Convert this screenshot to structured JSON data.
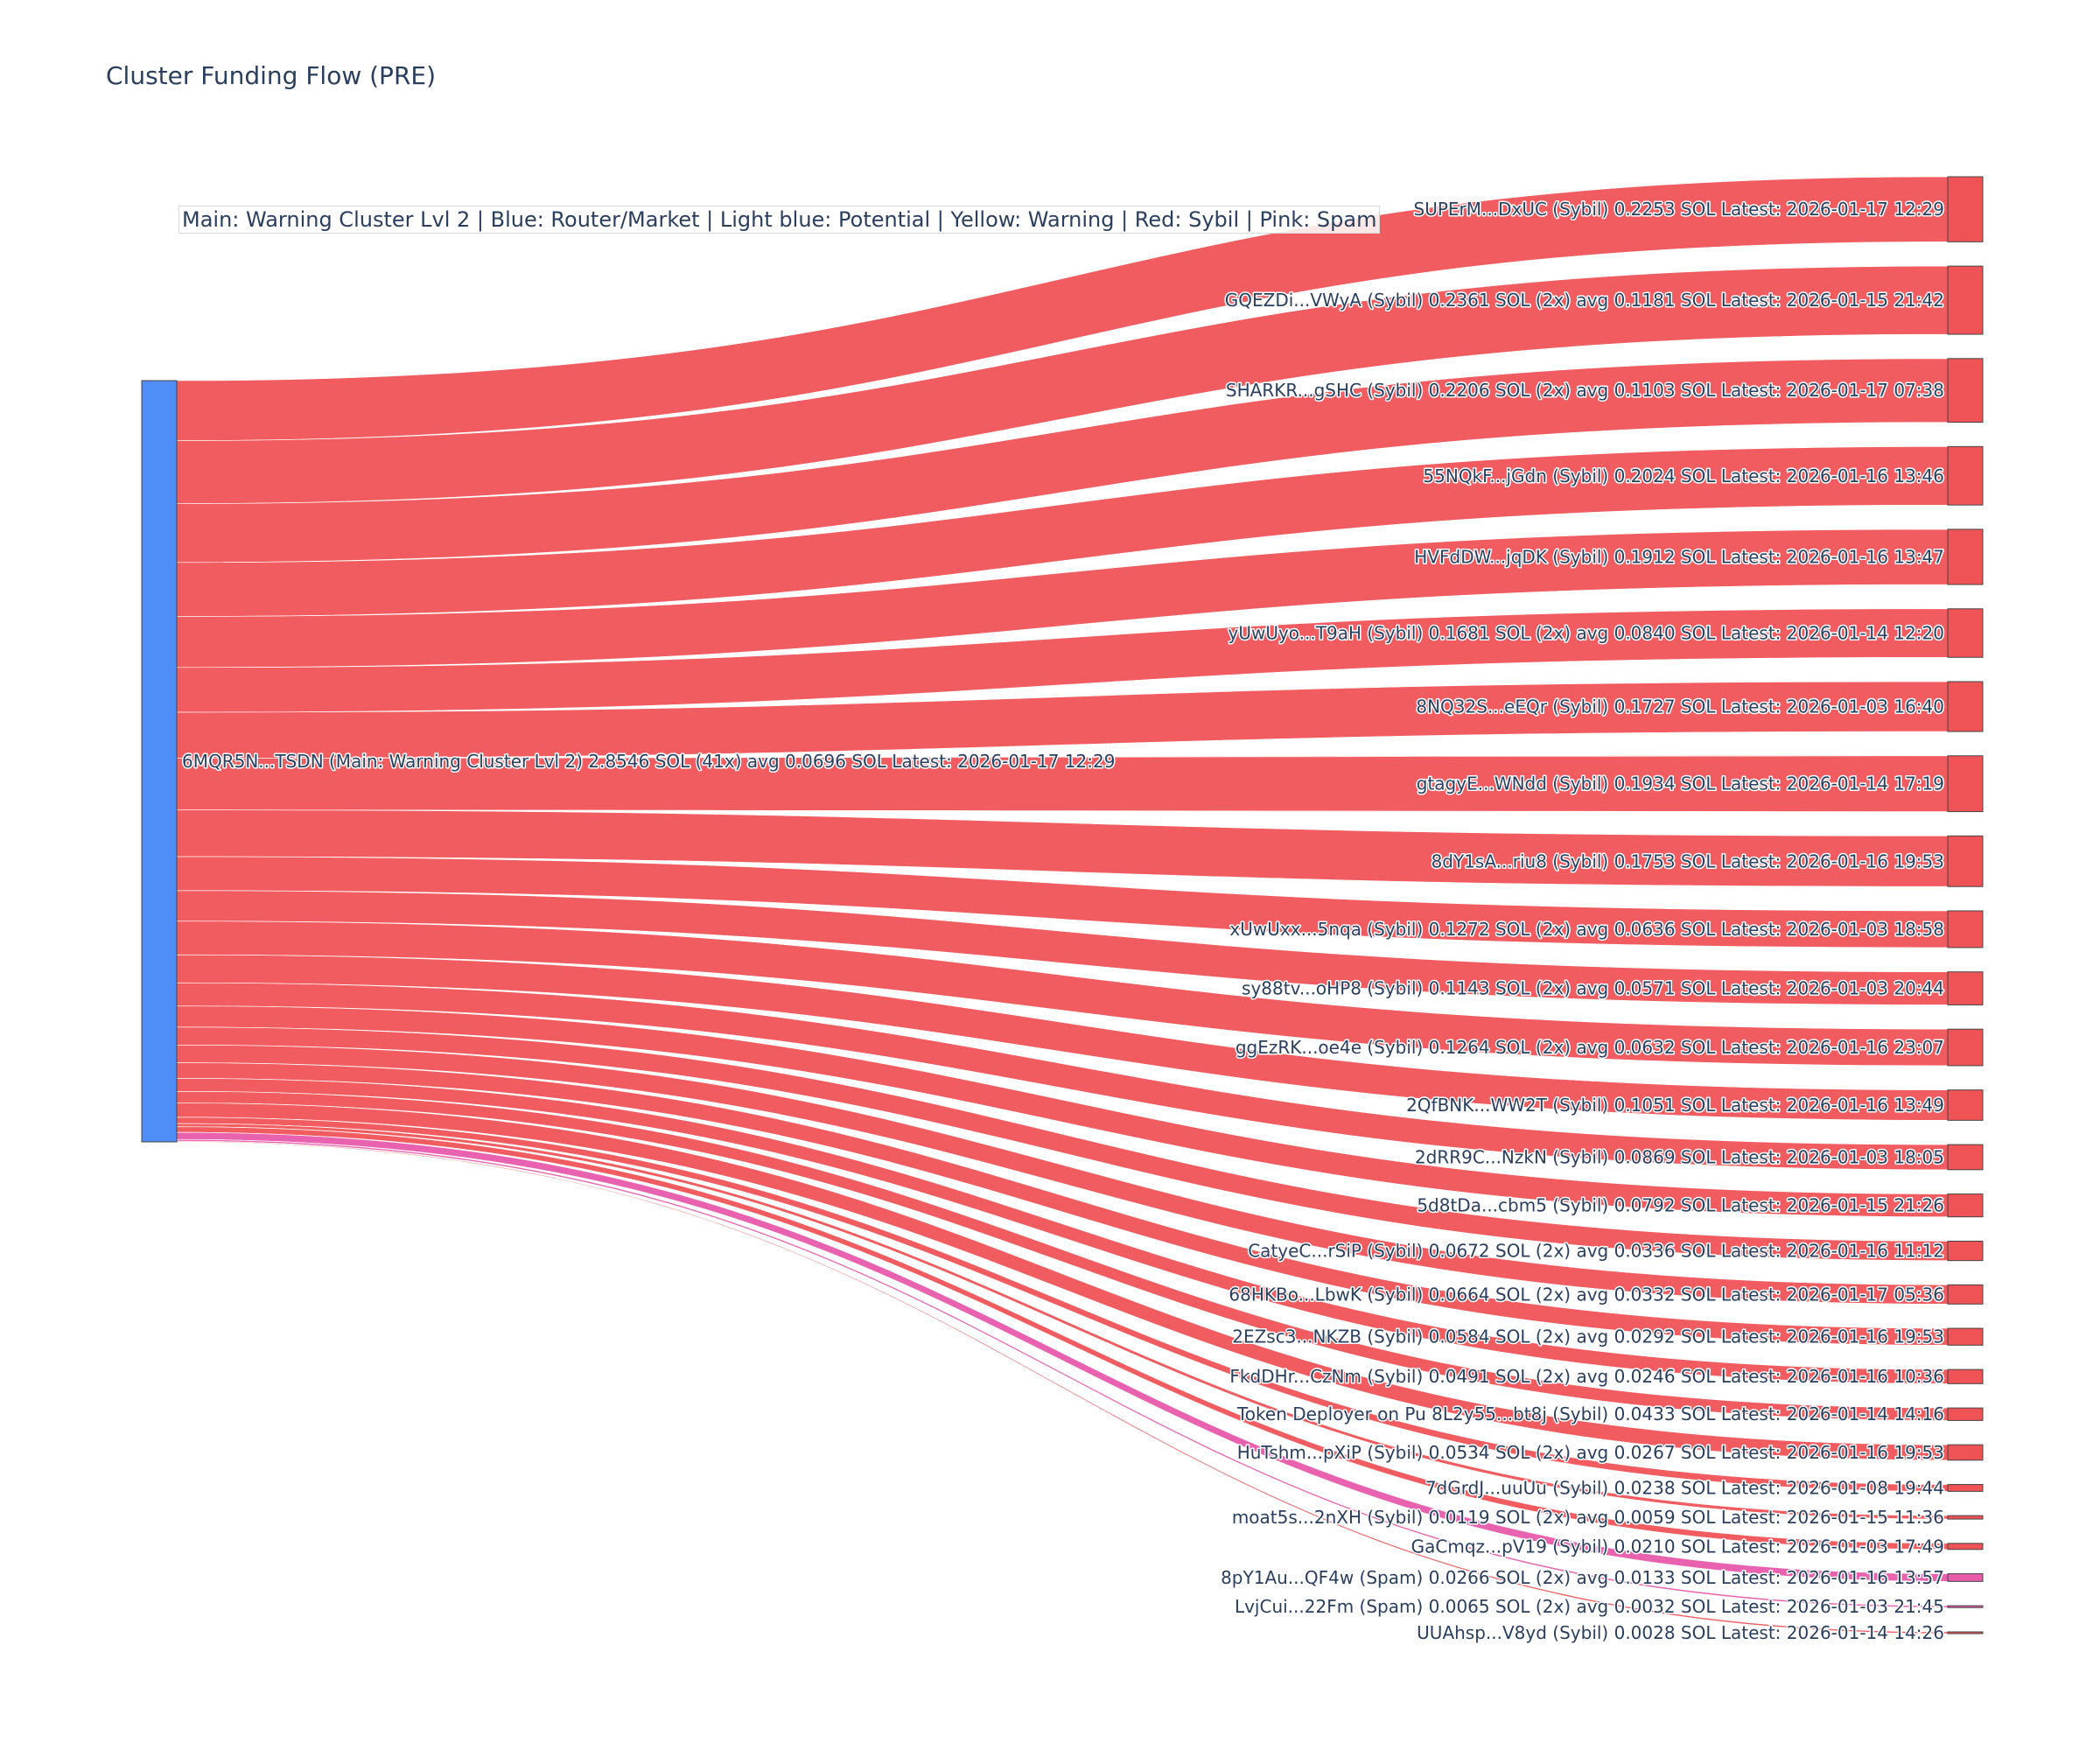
{
  "chart_data": {
    "type": "sankey",
    "title": "Cluster Funding Flow (PRE)",
    "annotation": "Main: Warning Cluster Lvl 2  |  Blue: Router/Market | Light blue: Potential | Yellow: Warning | Red: Sybil | Pink: Spam",
    "colors": {
      "Main": "#4f8ef7",
      "Sybil": "#ef5356",
      "Spam": "#e85aab"
    },
    "source": {
      "label": "6MQR5N...TSDN (Main: Warning Cluster Lvl 2) 2.8546 SOL (41x) avg 0.0696 SOL Latest: 2026-01-17 12:29",
      "category": "Main",
      "total": 2.8546
    },
    "targets": [
      {
        "label": "SUPErM...DxUC (Sybil) 0.2253 SOL Latest: 2026-01-17 12:29",
        "value": 0.2253,
        "category": "Sybil"
      },
      {
        "label": "GQEZDi...VWyA (Sybil) 0.2361 SOL (2x) avg 0.1181 SOL Latest: 2026-01-15 21:42",
        "value": 0.2361,
        "category": "Sybil"
      },
      {
        "label": "SHARKR...gSHC (Sybil) 0.2206 SOL (2x) avg 0.1103 SOL Latest: 2026-01-17 07:38",
        "value": 0.2206,
        "category": "Sybil"
      },
      {
        "label": "55NQkF...jGdn (Sybil) 0.2024 SOL Latest: 2026-01-16 13:46",
        "value": 0.2024,
        "category": "Sybil"
      },
      {
        "label": "HVFdDW...jqDK (Sybil) 0.1912 SOL Latest: 2026-01-16 13:47",
        "value": 0.1912,
        "category": "Sybil"
      },
      {
        "label": "yUwUyo...T9aH (Sybil) 0.1681 SOL (2x) avg 0.0840 SOL Latest: 2026-01-14 12:20",
        "value": 0.1681,
        "category": "Sybil"
      },
      {
        "label": "8NQ32S...eEQr (Sybil) 0.1727 SOL Latest: 2026-01-03 16:40",
        "value": 0.1727,
        "category": "Sybil"
      },
      {
        "label": "gtagyE...WNdd (Sybil) 0.1934 SOL Latest: 2026-01-14 17:19",
        "value": 0.1934,
        "category": "Sybil"
      },
      {
        "label": "8dY1sA...riu8 (Sybil) 0.1753 SOL Latest: 2026-01-16 19:53",
        "value": 0.1753,
        "category": "Sybil"
      },
      {
        "label": "xUwUxx...5nqa (Sybil) 0.1272 SOL (2x) avg 0.0636 SOL Latest: 2026-01-03 18:58",
        "value": 0.1272,
        "category": "Sybil"
      },
      {
        "label": "sy88tv...oHP8 (Sybil) 0.1143 SOL (2x) avg 0.0571 SOL Latest: 2026-01-03 20:44",
        "value": 0.1143,
        "category": "Sybil"
      },
      {
        "label": "ggEzRK...oe4e (Sybil) 0.1264 SOL (2x) avg 0.0632 SOL Latest: 2026-01-16 23:07",
        "value": 0.1264,
        "category": "Sybil"
      },
      {
        "label": "2QfBNK...WW2T (Sybil) 0.1051 SOL Latest: 2026-01-16 13:49",
        "value": 0.1051,
        "category": "Sybil"
      },
      {
        "label": "2dRR9C...NzkN (Sybil) 0.0869 SOL Latest: 2026-01-03 18:05",
        "value": 0.0869,
        "category": "Sybil"
      },
      {
        "label": "5d8tDa...cbm5 (Sybil) 0.0792 SOL Latest: 2026-01-15 21:26",
        "value": 0.0792,
        "category": "Sybil"
      },
      {
        "label": "CatyeC...rSiP (Sybil) 0.0672 SOL (2x) avg 0.0336 SOL Latest: 2026-01-16 11:12",
        "value": 0.0672,
        "category": "Sybil"
      },
      {
        "label": "68HKBo...LbwK (Sybil) 0.0664 SOL (2x) avg 0.0332 SOL Latest: 2026-01-17 05:36",
        "value": 0.0664,
        "category": "Sybil"
      },
      {
        "label": "2EZsc3...NKZB (Sybil) 0.0584 SOL (2x) avg 0.0292 SOL Latest: 2026-01-16 19:53",
        "value": 0.0584,
        "category": "Sybil"
      },
      {
        "label": "FkdDHr...CzNm (Sybil) 0.0491 SOL (2x) avg 0.0246 SOL Latest: 2026-01-16 10:36",
        "value": 0.0491,
        "category": "Sybil"
      },
      {
        "label": "Token Deployer on Pu 8L2y55...bt8j (Sybil) 0.0433 SOL Latest: 2026-01-14 14:16",
        "value": 0.0433,
        "category": "Sybil"
      },
      {
        "label": "HuTshm...pXiP (Sybil) 0.0534 SOL (2x) avg 0.0267 SOL Latest: 2026-01-16 19:53",
        "value": 0.0534,
        "category": "Sybil"
      },
      {
        "label": "7dGrdJ...uuUu (Sybil) 0.0238 SOL Latest: 2026-01-08 19:44",
        "value": 0.0238,
        "category": "Sybil"
      },
      {
        "label": "moat5s...2nXH (Sybil) 0.0119 SOL (2x) avg 0.0059 SOL Latest: 2026-01-15 11:36",
        "value": 0.0119,
        "category": "Sybil"
      },
      {
        "label": "GaCmqz...pV19 (Sybil) 0.0210 SOL Latest: 2026-01-03 17:49",
        "value": 0.021,
        "category": "Sybil"
      },
      {
        "label": "8pY1Au...QF4w (Spam) 0.0266 SOL (2x) avg 0.0133 SOL Latest: 2026-01-16 13:57",
        "value": 0.0266,
        "category": "Spam"
      },
      {
        "label": "LvjCui...22Fm (Spam) 0.0065 SOL (2x) avg 0.0032 SOL Latest: 2026-01-03 21:45",
        "value": 0.0065,
        "category": "Spam"
      },
      {
        "label": "UUAhsp...V8yd (Sybil) 0.0028 SOL Latest: 2026-01-14 14:26",
        "value": 0.0028,
        "category": "Sybil"
      }
    ]
  }
}
